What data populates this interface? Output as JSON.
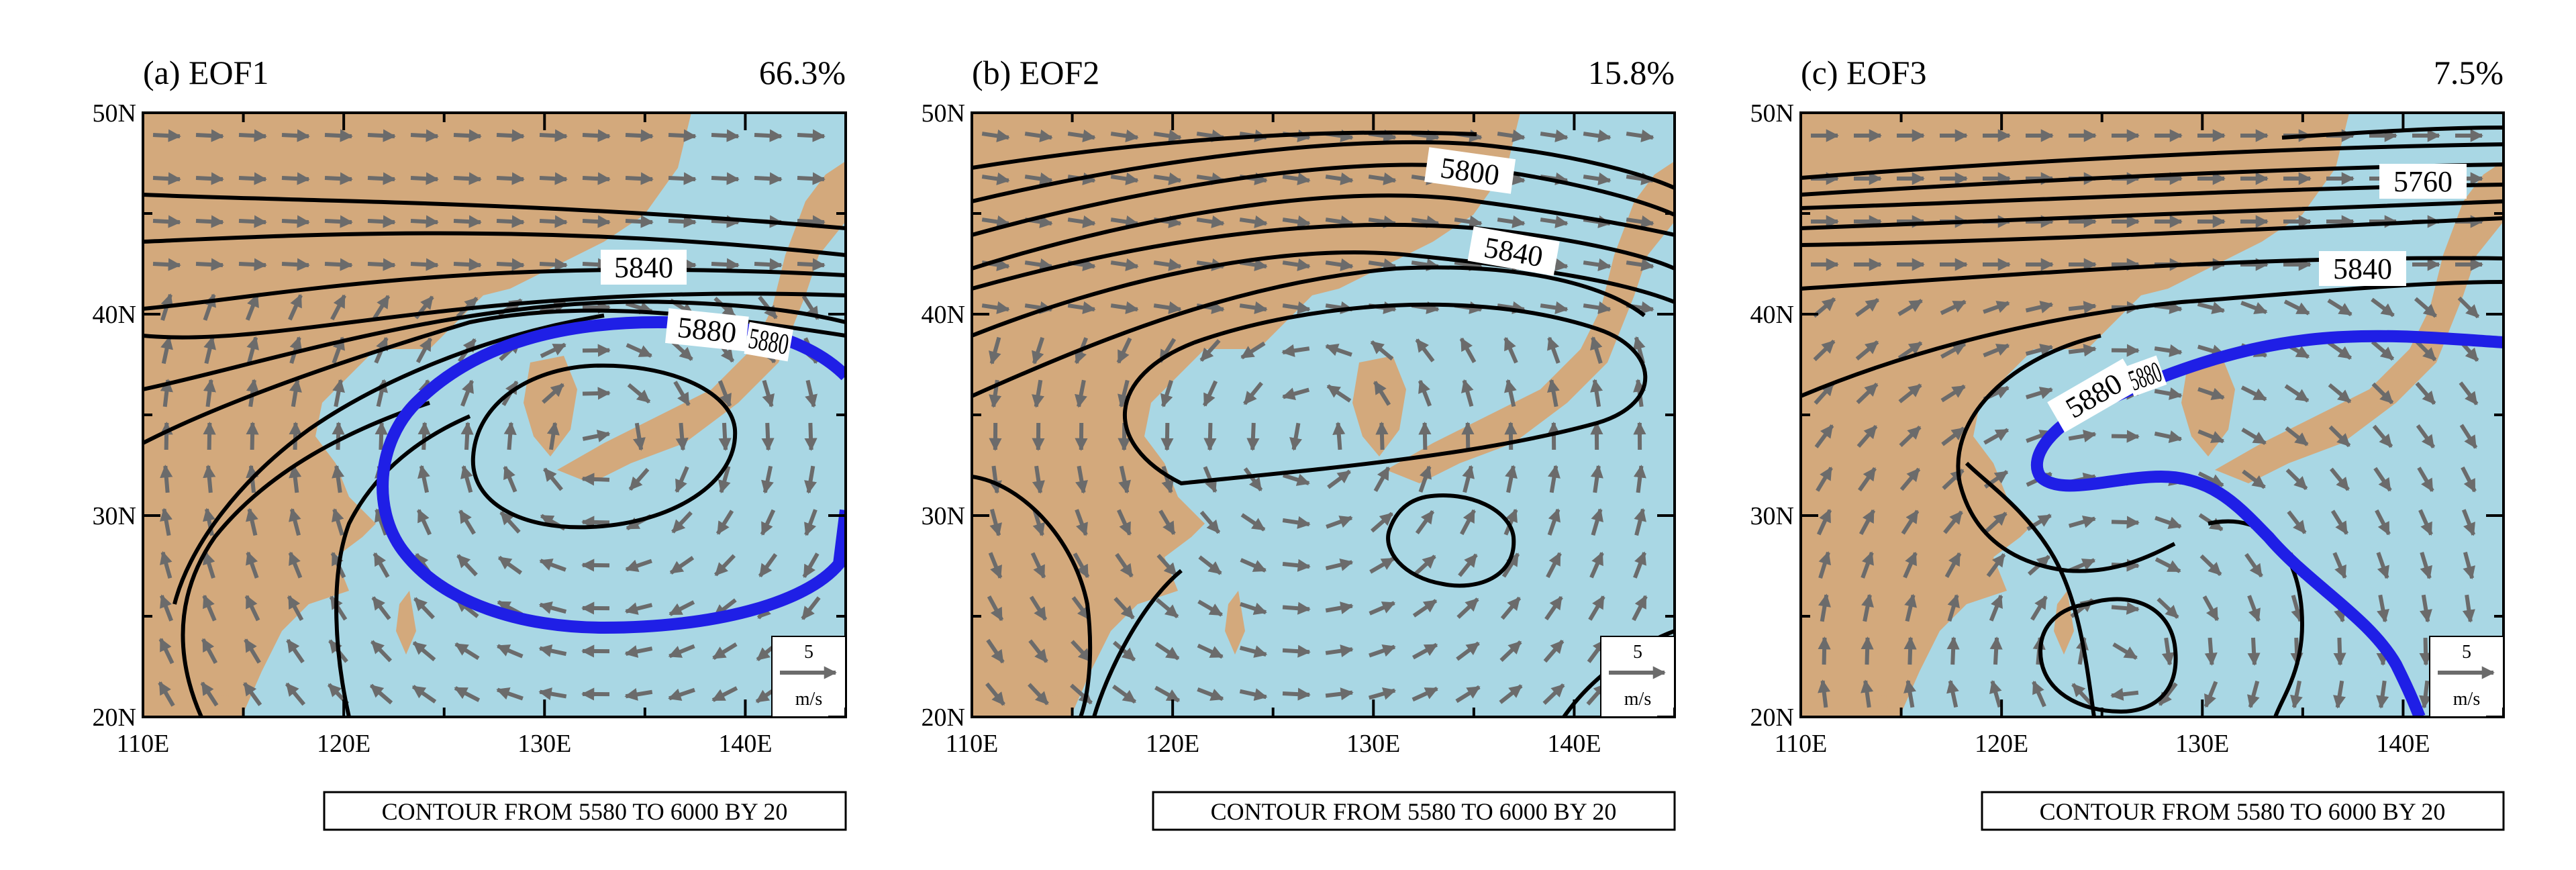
{
  "figure": {
    "panels": [
      {
        "title": "(a) EOF1",
        "percent": "66.3%",
        "contour_labels": [
          "5840",
          "5880",
          "5880"
        ],
        "vector_ref_value": "5",
        "vector_ref_unit": "m/s",
        "contour_info": "CONTOUR FROM 5580 TO 6000 BY 20"
      },
      {
        "title": "(b) EOF2",
        "percent": "15.8%",
        "contour_labels": [
          "5800",
          "5840"
        ],
        "vector_ref_value": "5",
        "vector_ref_unit": "m/s",
        "contour_info": "CONTOUR FROM 5580 TO 6000 BY 20"
      },
      {
        "title": "(c) EOF3",
        "percent": "7.5%",
        "contour_labels": [
          "5760",
          "5840",
          "5880",
          "5880"
        ],
        "vector_ref_value": "5",
        "vector_ref_unit": "m/s",
        "contour_info": "CONTOUR FROM 5580 TO 6000 BY 20"
      }
    ],
    "lon_ticks": [
      "110E",
      "120E",
      "130E",
      "140E"
    ],
    "lat_ticks": [
      "50N",
      "40N",
      "30N",
      "20N"
    ],
    "colors": {
      "land": "#d3a97c",
      "ocean": "#a9d7e4",
      "contour": "#000000",
      "highlight_contour": "#1f1fe6",
      "vectors": "#6b6b6b"
    }
  }
}
